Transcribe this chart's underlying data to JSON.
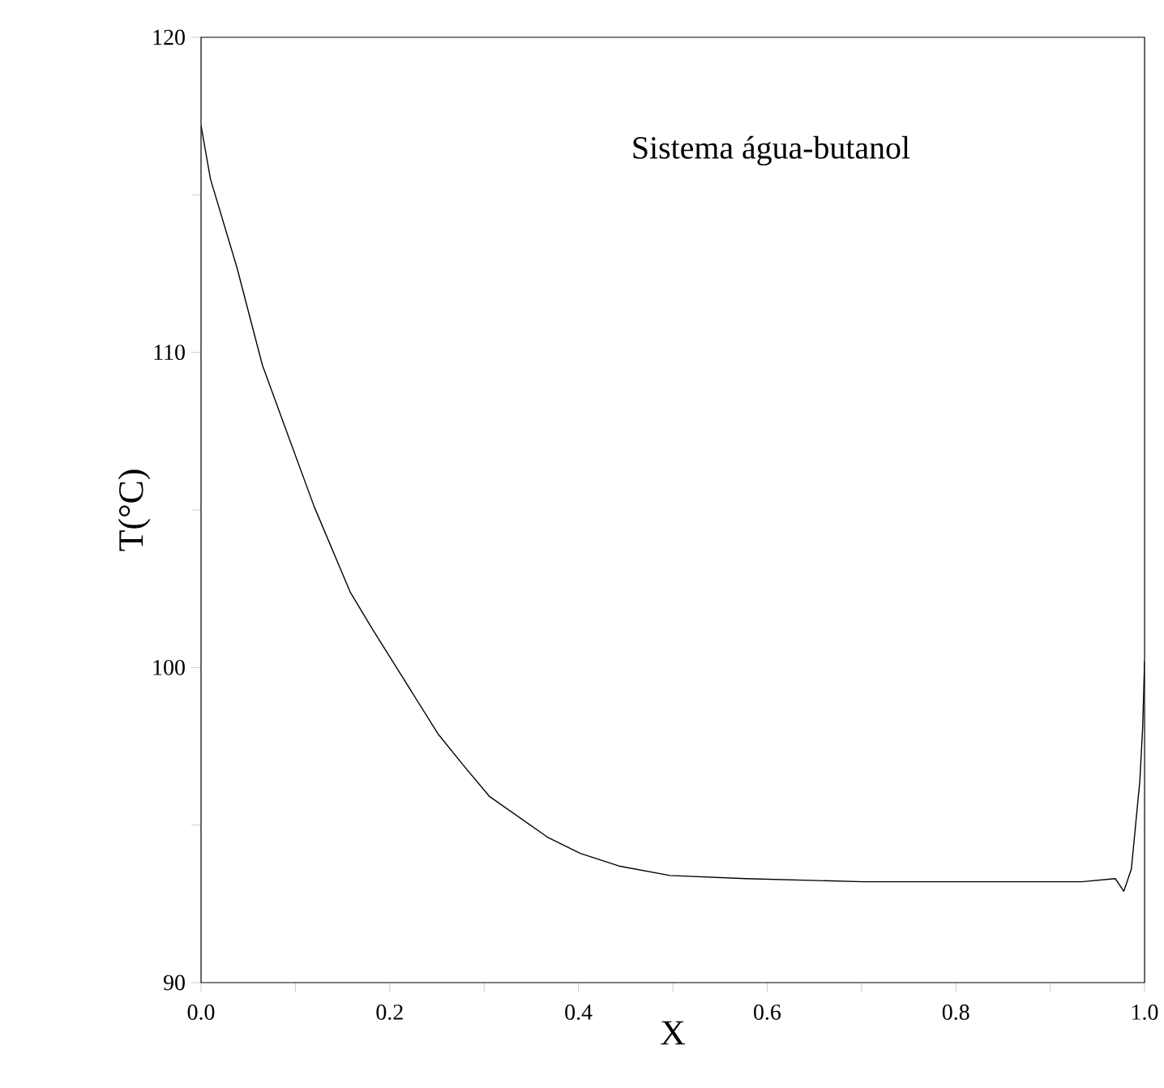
{
  "chart_data": {
    "type": "line",
    "xlabel": "X",
    "ylabel": "T(°C)",
    "annotations": [
      "Sistema água-butanol"
    ],
    "xlim": [
      0,
      1
    ],
    "ylim": [
      90,
      120
    ],
    "xticks": [
      {
        "value": 0,
        "label": "0.0"
      },
      {
        "value": 0.1,
        "label": null
      },
      {
        "value": 0.2,
        "label": "0.2"
      },
      {
        "value": 0.3,
        "label": null
      },
      {
        "value": 0.4,
        "label": "0.4"
      },
      {
        "value": 0.5,
        "label": null
      },
      {
        "value": 0.6,
        "label": "0.6"
      },
      {
        "value": 0.7,
        "label": null
      },
      {
        "value": 0.8,
        "label": "0.8"
      },
      {
        "value": 0.9,
        "label": null
      },
      {
        "value": 1,
        "label": "1.0"
      }
    ],
    "yticks": [
      90,
      {
        "value": 95,
        "label": null
      },
      100,
      {
        "value": 105,
        "label": null
      },
      110,
      {
        "value": 115,
        "label": null
      },
      120
    ],
    "grid": false,
    "marker": "none",
    "line_style": "solid",
    "series": [
      {
        "color": "#000000",
        "x": [
          0,
          0.01,
          0.038,
          0.065,
          0.093,
          0.12,
          0.158,
          0.182,
          0.203,
          0.251,
          0.278,
          0.306,
          0.368,
          0.402,
          0.443,
          0.497,
          0.577,
          0.703,
          0.818,
          0.933,
          0.969,
          0.978,
          0.986,
          0.995,
          0.998,
          1.0
        ],
        "values": [
          117.2,
          115.5,
          112.7,
          109.6,
          107.3,
          105.1,
          102.4,
          101.2,
          100.2,
          97.9,
          96.9,
          95.9,
          94.6,
          94.1,
          93.7,
          93.4,
          93.3,
          93.2,
          93.2,
          93.2,
          93.3,
          92.9,
          93.6,
          96.4,
          98.1,
          100.2
        ]
      }
    ]
  }
}
